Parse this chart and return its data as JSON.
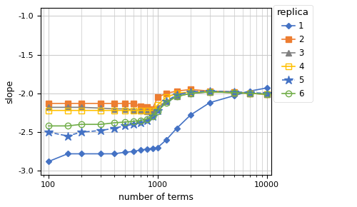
{
  "x_values": [
    100,
    150,
    200,
    300,
    400,
    500,
    600,
    700,
    800,
    900,
    1000,
    1200,
    1500,
    2000,
    3000,
    5000,
    7000,
    10000
  ],
  "series": {
    "1": {
      "color": "#4472c4",
      "marker": "D",
      "markersize": 4,
      "label": "1",
      "linewidth": 1.2,
      "markerfacecolor": "#4472c4",
      "y": [
        -2.88,
        -2.78,
        -2.78,
        -2.78,
        -2.78,
        -2.76,
        -2.75,
        -2.73,
        -2.72,
        -2.71,
        -2.7,
        -2.6,
        -2.45,
        -2.28,
        -2.12,
        -2.03,
        -1.97,
        -1.93
      ]
    },
    "2": {
      "color": "#ed7d31",
      "marker": "s",
      "markersize": 6,
      "label": "2",
      "linewidth": 1.2,
      "markerfacecolor": "#ed7d31",
      "y": [
        -2.13,
        -2.13,
        -2.13,
        -2.13,
        -2.13,
        -2.13,
        -2.13,
        -2.17,
        -2.18,
        -2.2,
        -2.05,
        -2.0,
        -1.97,
        -1.95,
        -1.97,
        -1.98,
        -2.0,
        -2.01
      ]
    },
    "3": {
      "color": "#808080",
      "marker": "^",
      "markersize": 6,
      "label": "3",
      "linewidth": 1.2,
      "markerfacecolor": "#808080",
      "y": [
        -2.18,
        -2.18,
        -2.18,
        -2.19,
        -2.2,
        -2.2,
        -2.21,
        -2.22,
        -2.23,
        -2.22,
        -2.18,
        -2.1,
        -2.04,
        -2.0,
        -1.98,
        -1.99,
        -2.0,
        -2.01
      ]
    },
    "4": {
      "color": "#ffc000",
      "marker": "s",
      "markersize": 6,
      "label": "4",
      "linewidth": 1.2,
      "markerfacecolor": "none",
      "y": [
        -2.22,
        -2.22,
        -2.22,
        -2.22,
        -2.22,
        -2.22,
        -2.22,
        -2.22,
        -2.22,
        -2.22,
        -2.15,
        -2.05,
        -2.0,
        -1.98,
        -1.98,
        -1.99,
        -2.0,
        -2.01
      ]
    },
    "5": {
      "color": "#4472c4",
      "marker": "*",
      "markersize": 9,
      "label": "5",
      "linewidth": 1.2,
      "markerfacecolor": "#4472c4",
      "linestyle": "--",
      "y": [
        -2.5,
        -2.55,
        -2.5,
        -2.48,
        -2.45,
        -2.42,
        -2.4,
        -2.38,
        -2.35,
        -2.3,
        -2.22,
        -2.1,
        -2.02,
        -1.98,
        -1.97,
        -1.98,
        -1.99,
        -2.0
      ]
    },
    "6": {
      "color": "#70ad47",
      "marker": "o",
      "markersize": 6,
      "label": "6",
      "linewidth": 1.2,
      "markerfacecolor": "none",
      "y": [
        -2.42,
        -2.42,
        -2.4,
        -2.4,
        -2.38,
        -2.37,
        -2.36,
        -2.35,
        -2.33,
        -2.3,
        -2.23,
        -2.12,
        -2.04,
        -2.0,
        -1.98,
        -1.99,
        -2.0,
        -2.01
      ]
    }
  },
  "xlim": [
    85,
    11000
  ],
  "ylim": [
    -3.05,
    -0.9
  ],
  "yticks": [
    -1.0,
    -1.5,
    -2.0,
    -2.5,
    -3.0
  ],
  "xlabel": "number of terms",
  "ylabel": "slope",
  "legend_title": "replica",
  "background_color": "#ffffff",
  "grid_color": "#c8c8c8",
  "axis_fontsize": 9,
  "legend_fontsize": 8.5,
  "tick_fontsize": 8
}
